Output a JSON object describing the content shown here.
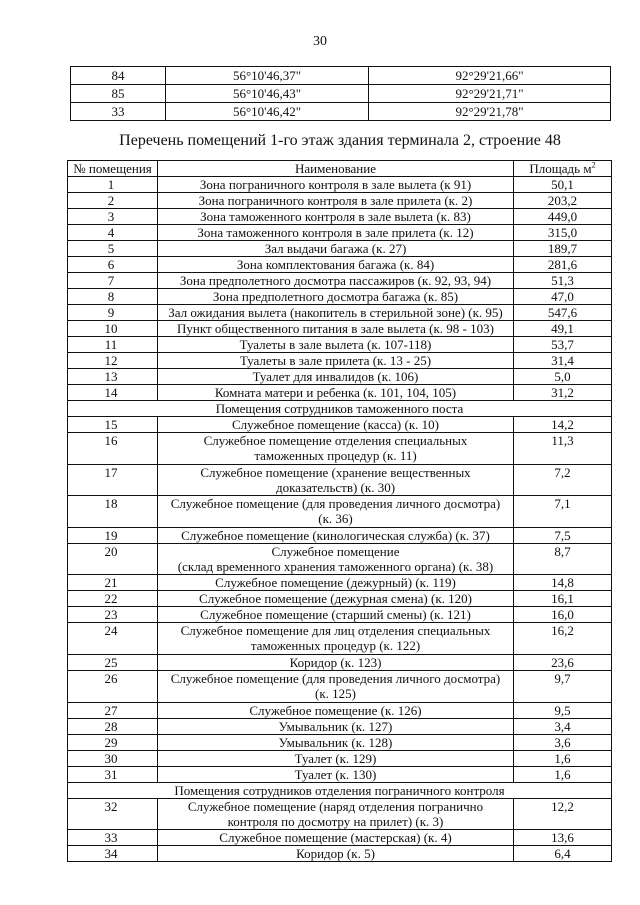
{
  "page_number": "30",
  "coordinates_table": [
    [
      "84",
      "56°10'46,37\"",
      "92°29'21,66\""
    ],
    [
      "85",
      "56°10'46,43\"",
      "92°29'21,71\""
    ],
    [
      "33",
      "56°10'46,42\"",
      "92°29'21,78\""
    ]
  ],
  "title": "Перечень помещений 1-го этаж здания терминала 2, строение 48",
  "rooms_table": {
    "headers": {
      "number": "№ помещения",
      "name": "Наименование",
      "area": "Площадь м",
      "area_sup": "2"
    },
    "rows": [
      {
        "n": "1",
        "name": "Зона пограничного контроля в зале вылета (к 91)",
        "area": "50,1"
      },
      {
        "n": "2",
        "name": "Зона пограничного контроля в зале прилета (к. 2)",
        "area": "203,2"
      },
      {
        "n": "3",
        "name": "Зона таможенного контроля в зале вылета (к. 83)",
        "area": "449,0"
      },
      {
        "n": "4",
        "name": "Зона таможенного контроля в зале прилета (к. 12)",
        "area": "315,0"
      },
      {
        "n": "5",
        "name": "Зал выдачи багажа (к. 27)",
        "area": "189,7"
      },
      {
        "n": "6",
        "name": "Зона комплектования багажа (к. 84)",
        "area": "281,6"
      },
      {
        "n": "7",
        "name": "Зона предполетного досмотра пассажиров (к. 92, 93, 94)",
        "area": "51,3"
      },
      {
        "n": "8",
        "name": "Зона предполетного досмотра багажа (к. 85)",
        "area": "47,0"
      },
      {
        "n": "9",
        "name": "Зал ожидания вылета (накопитель в стерильной зоне) (к. 95)",
        "area": "547,6"
      },
      {
        "n": "10",
        "name": "Пункт общественного питания в зале вылета (к. 98 - 103)",
        "area": "49,1"
      },
      {
        "n": "11",
        "name": "Туалеты в зале вылета (к. 107-118)",
        "area": "53,7"
      },
      {
        "n": "12",
        "name": "Туалеты в зале прилета (к. 13 - 25)",
        "area": "31,4"
      },
      {
        "n": "13",
        "name": "Туалет для инвалидов (к. 106)",
        "area": "5,0"
      },
      {
        "n": "14",
        "name": "Комната матери и ребенка (к. 101, 104, 105)",
        "area": "31,2"
      },
      {
        "section": "Помещения сотрудников таможенного поста"
      },
      {
        "n": "15",
        "name": "Служебное помещение (касса) (к. 10)",
        "area": "14,2"
      },
      {
        "n": "16",
        "name": "Служебное помещение отделения специальных\nтаможенных процедур (к. 11)",
        "area": "11,3"
      },
      {
        "n": "17",
        "name": "Служебное помещение (хранение вещественных\nдоказательств) (к. 30)",
        "area": "7,2"
      },
      {
        "n": "18",
        "name": "Служебное помещение (для проведения личного досмотра)\n(к. 36)",
        "area": "7,1"
      },
      {
        "n": "19",
        "name": "Служебное помещение (кинологическая служба) (к. 37)",
        "area": "7,5"
      },
      {
        "n": "20",
        "name": "Служебное помещение\n(склад временного хранения таможенного органа) (к. 38)",
        "area": "8,7"
      },
      {
        "n": "21",
        "name": "Служебное помещение (дежурный) (к. 119)",
        "area": "14,8"
      },
      {
        "n": "22",
        "name": "Служебное помещение (дежурная смена) (к. 120)",
        "area": "16,1"
      },
      {
        "n": "23",
        "name": "Служебное помещение (старший смены) (к. 121)",
        "area": "16,0"
      },
      {
        "n": "24",
        "name": "Служебное помещение для лиц отделения специальных\nтаможенных процедур (к. 122)",
        "area": "16,2"
      },
      {
        "n": "25",
        "name": "Коридор (к. 123)",
        "area": "23,6"
      },
      {
        "n": "26",
        "name": "Служебное помещение (для проведения личного досмотра)\n(к. 125)",
        "area": "9,7"
      },
      {
        "n": "27",
        "name": "Служебное помещение (к. 126)",
        "area": "9,5"
      },
      {
        "n": "28",
        "name": "Умывальник (к. 127)",
        "area": "3,4"
      },
      {
        "n": "29",
        "name": "Умывальник (к. 128)",
        "area": "3,6"
      },
      {
        "n": "30",
        "name": "Туалет (к. 129)",
        "area": "1,6"
      },
      {
        "n": "31",
        "name": "Туалет (к. 130)",
        "area": "1,6"
      },
      {
        "section": "Помещения сотрудников отделения пограничного контроля"
      },
      {
        "n": "32",
        "name": "Служебное помещение (наряд отделения погранично\nконтроля по досмотру на прилет) (к. 3)",
        "area": "12,2"
      },
      {
        "n": "33",
        "name": "Служебное помещение (мастерская) (к. 4)",
        "area": "13,6"
      },
      {
        "n": "34",
        "name": "Коридор (к. 5)",
        "area": "6,4"
      }
    ]
  }
}
